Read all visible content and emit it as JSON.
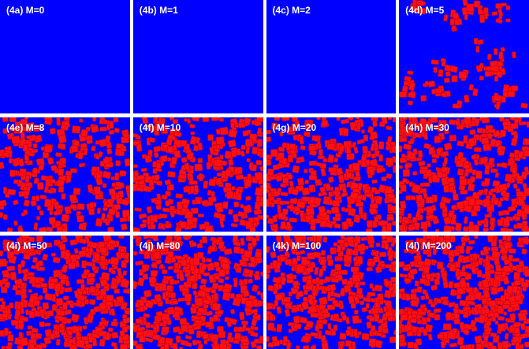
{
  "panels": [
    {
      "label": "(4a) M=0",
      "red_fraction": 0.0
    },
    {
      "label": "(4b) M=1",
      "red_fraction": 0.0
    },
    {
      "label": "(4c) M=2",
      "red_fraction": 0.0
    },
    {
      "label": "(4d) M=5",
      "red_fraction": 0.18
    },
    {
      "label": "(4e) M=8",
      "red_fraction": 0.42
    },
    {
      "label": "(4f) M=10",
      "red_fraction": 0.48
    },
    {
      "label": "(4g) M=20",
      "red_fraction": 0.55
    },
    {
      "label": "(4h) M=30",
      "red_fraction": 0.6
    },
    {
      "label": "(4i) M=50",
      "red_fraction": 0.62
    },
    {
      "label": "(4j) M=80",
      "red_fraction": 0.64
    },
    {
      "label": "(4k) M=100",
      "red_fraction": 0.6
    },
    {
      "label": "(4l) M=200",
      "red_fraction": 0.7
    }
  ],
  "colors": {
    "background": "#0000ff",
    "cluster": "#ff1010",
    "cluster_edge": "#c00020"
  }
}
